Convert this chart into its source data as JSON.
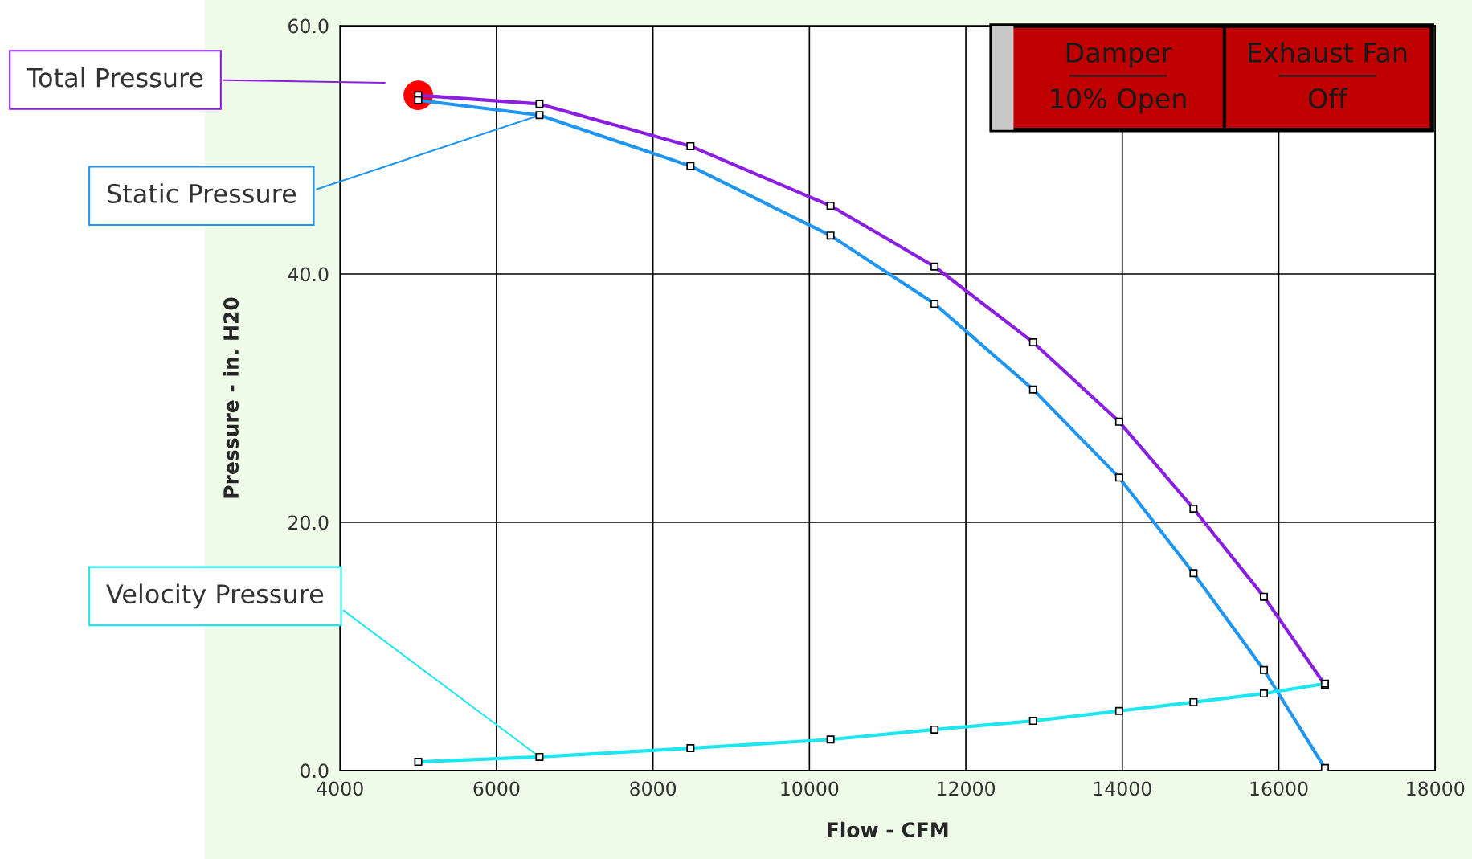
{
  "chart_data": {
    "type": "line",
    "xlabel": "Flow - CFM",
    "ylabel": "Pressure - in. H20",
    "xlim": [
      4000,
      18000
    ],
    "xticks": [
      4000,
      6000,
      8000,
      10000,
      12000,
      14000,
      16000,
      18000
    ],
    "ylim": [
      0,
      60
    ],
    "yticks": [
      {
        "value": 0,
        "label": "0.0"
      },
      {
        "value": 20,
        "label": "20.0"
      },
      {
        "value": 40,
        "label": "40.0"
      },
      {
        "value": 60,
        "label": "60.0"
      }
    ],
    "grid": true,
    "legend": false,
    "marker": "square",
    "line_style": "solid",
    "series": [
      {
        "name": "Total Pressure",
        "color": "#8a1fe0",
        "x": [
          5000,
          6550,
          8480,
          10270,
          11600,
          12860,
          13960,
          14910,
          15810,
          16590
        ],
        "values": [
          54.4,
          53.7,
          50.3,
          45.5,
          40.6,
          34.5,
          28.1,
          21.1,
          14.0,
          6.9
        ]
      },
      {
        "name": "Static Pressure",
        "color": "#2196f0",
        "x": [
          5000,
          6550,
          8480,
          10270,
          11600,
          12860,
          13960,
          14910,
          15810,
          16590
        ],
        "values": [
          54.0,
          52.8,
          48.7,
          43.1,
          37.6,
          30.7,
          23.6,
          15.9,
          8.1,
          0.2
        ]
      },
      {
        "name": "Velocity Pressure",
        "color": "#1ee6f0",
        "x": [
          5000,
          6550,
          8480,
          10270,
          11600,
          12860,
          13960,
          14910,
          15810,
          16590
        ],
        "values": [
          0.7,
          1.1,
          1.8,
          2.5,
          3.3,
          4.0,
          4.8,
          5.5,
          6.2,
          7.0
        ]
      },
      {
        "type": "scatter",
        "marker": "circle",
        "color": "#ff0000",
        "x": [
          5000
        ],
        "values": [
          54.4
        ]
      }
    ],
    "annotations": [
      "Damper",
      "10% Open",
      "Exhaust Fan",
      "Off"
    ]
  }
}
